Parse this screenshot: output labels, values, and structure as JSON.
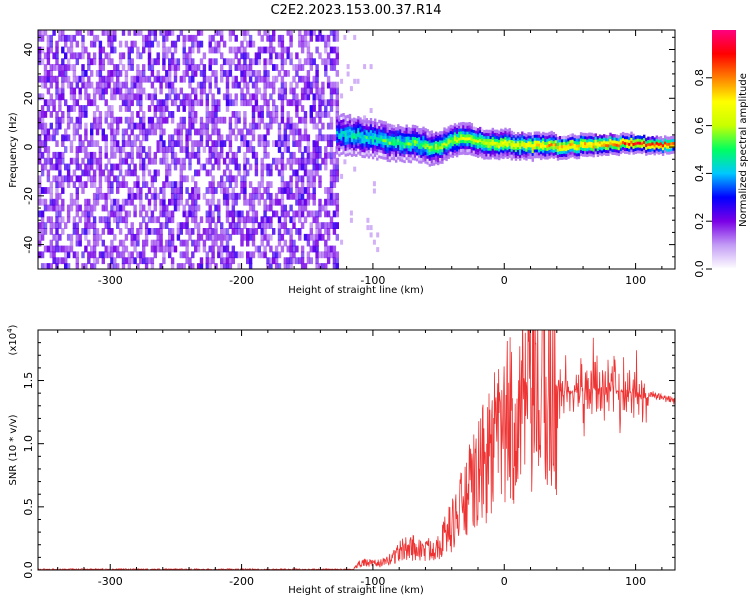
{
  "title": "C2E2.2023.153.00.37.R14",
  "chart_data": [
    {
      "type": "heatmap",
      "xlabel": "Height of straight line (km)",
      "ylabel": "Frequency (Hz)",
      "xlim": [
        -355,
        130
      ],
      "ylim": [
        -50,
        48
      ],
      "x_ticks": [
        -300,
        -200,
        -100,
        0,
        100
      ],
      "y_ticks": [
        -40,
        -20,
        0,
        20,
        40
      ],
      "noise_region_x": [
        -355,
        -128
      ],
      "signal_start_x": -128,
      "centerline": [
        {
          "x": -128,
          "y": 5
        },
        {
          "x": -110,
          "y": 4
        },
        {
          "x": -90,
          "y": 2
        },
        {
          "x": -70,
          "y": 1
        },
        {
          "x": -55,
          "y": -1
        },
        {
          "x": -40,
          "y": 2
        },
        {
          "x": -30,
          "y": 3
        },
        {
          "x": -15,
          "y": 1
        },
        {
          "x": 0,
          "y": 1
        },
        {
          "x": 20,
          "y": 0
        },
        {
          "x": 50,
          "y": 0
        },
        {
          "x": 80,
          "y": 1
        },
        {
          "x": 100,
          "y": 1
        },
        {
          "x": 130,
          "y": 0
        }
      ],
      "colorbar": {
        "label": "Normalized spectral amplitude",
        "ticks": [
          "0.0",
          "0.2",
          "0.4",
          "0.6",
          "0.8"
        ],
        "range": [
          0,
          1
        ],
        "colors": [
          "#ffffff",
          "#c39cf5",
          "#7a00e6",
          "#0000ff",
          "#00c8ff",
          "#00ff60",
          "#c8ff00",
          "#ffff00",
          "#ff8000",
          "#ff0000",
          "#ff0080"
        ]
      }
    },
    {
      "type": "line",
      "xlabel": "Height of straight line (km)",
      "ylabel": "SNR (10 * v/v)",
      "yunit": "(x10",
      "yunit_exp": "4",
      "yunit_close": ")",
      "xlim": [
        -355,
        130
      ],
      "ylim": [
        0,
        1.9
      ],
      "x_ticks": [
        -300,
        -200,
        -100,
        0,
        100
      ],
      "y_ticks": [
        "0.0",
        "0.5",
        "1.0",
        "1.5"
      ],
      "line_color": "#ee3333",
      "envelope": [
        {
          "x": -355,
          "y": 0.005
        },
        {
          "x": -115,
          "y": 0.005
        },
        {
          "x": -110,
          "y": 0.06
        },
        {
          "x": -100,
          "y": 0.05
        },
        {
          "x": -90,
          "y": 0.06
        },
        {
          "x": -80,
          "y": 0.15
        },
        {
          "x": -70,
          "y": 0.18
        },
        {
          "x": -60,
          "y": 0.15
        },
        {
          "x": -50,
          "y": 0.2
        },
        {
          "x": -40,
          "y": 0.35
        },
        {
          "x": -30,
          "y": 0.55
        },
        {
          "x": -20,
          "y": 0.75
        },
        {
          "x": -10,
          "y": 0.95
        },
        {
          "x": 0,
          "y": 1.1
        },
        {
          "x": 10,
          "y": 1.25
        },
        {
          "x": 20,
          "y": 1.32
        },
        {
          "x": 30,
          "y": 1.38
        },
        {
          "x": 40,
          "y": 1.4
        },
        {
          "x": 50,
          "y": 1.42
        },
        {
          "x": 60,
          "y": 1.43
        },
        {
          "x": 70,
          "y": 1.44
        },
        {
          "x": 80,
          "y": 1.43
        },
        {
          "x": 90,
          "y": 1.42
        },
        {
          "x": 100,
          "y": 1.41
        },
        {
          "x": 110,
          "y": 1.4
        },
        {
          "x": 120,
          "y": 1.36
        },
        {
          "x": 130,
          "y": 1.34
        }
      ]
    }
  ]
}
